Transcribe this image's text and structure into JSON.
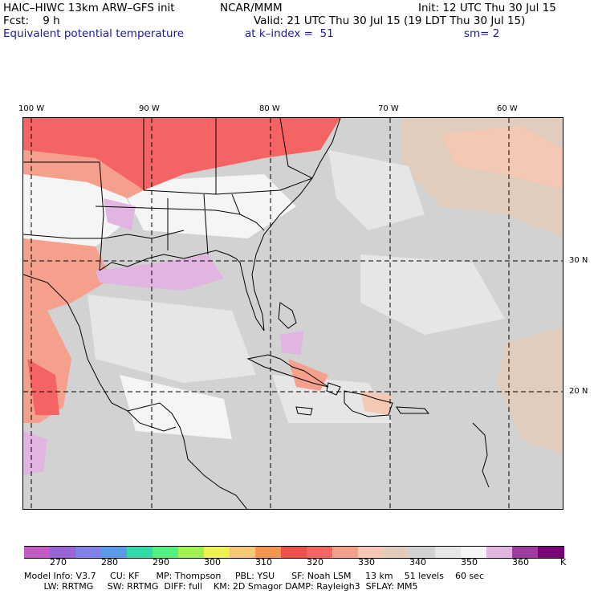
{
  "header": {
    "model": "HAIC–HIWC 13km ARW–GFS init",
    "org": "NCAR/MMM",
    "init": "Init: 12 UTC Thu 30 Jul 15",
    "fcst": "Fcst:    9 h",
    "valid": "Valid: 21 UTC Thu 30 Jul 15 (19 LDT Thu 30 Jul 15)",
    "field": "Equivalent potential temperature",
    "level": "at k–index =  51",
    "smooth": "sm= 2"
  },
  "map": {
    "lon_labels": [
      "100 W",
      "90 W",
      "80 W",
      "70 W",
      "60 W"
    ],
    "lat_labels": [
      "30 N",
      "20 N"
    ]
  },
  "colorbar": {
    "unit": "K",
    "labels": [
      "270",
      "280",
      "290",
      "300",
      "310",
      "320",
      "330",
      "340",
      "350",
      "360"
    ],
    "colors": [
      "#c45ac4",
      "#9a64d2",
      "#8282e6",
      "#5a9ae6",
      "#32dcaa",
      "#50f082",
      "#a0f050",
      "#f0f050",
      "#f5c878",
      "#f59650",
      "#f0504b",
      "#f56464",
      "#f5a08c",
      "#f5c8b4",
      "#e1cdbe",
      "#d2d2d2",
      "#e6e6e6",
      "#f5f5f5",
      "#e1b4e1",
      "#a03ca0",
      "#780078"
    ]
  },
  "footer": {
    "line1": "Model Info: V3.7     CU: KF      MP: Thompson     PBL: YSU      SF: Noah LSM     13 km    51 levels    60 sec",
    "line2": "       LW: RRTMG     SW: RRTMG  DIFF: full    KM: 2D Smagor DAMP: Rayleigh3  SFLAY: MM5"
  }
}
